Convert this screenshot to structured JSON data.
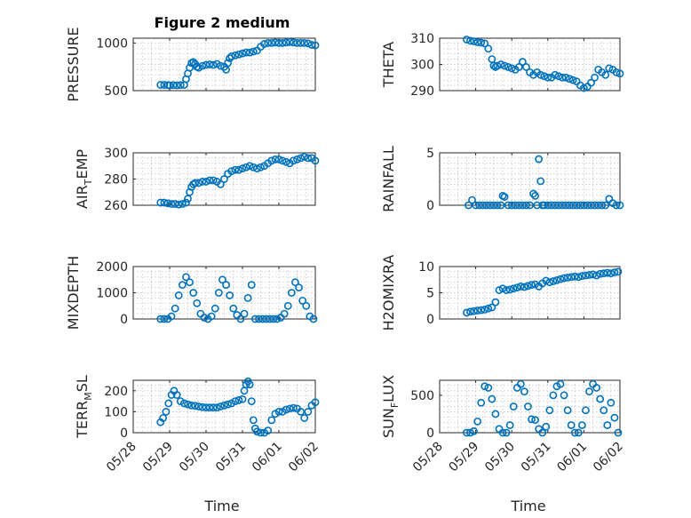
{
  "figure_title": "Figure 2 medium",
  "x_label": "Time",
  "x_ticks": [
    "05/28",
    "05/29",
    "05/30",
    "05/31",
    "06/01",
    "06/02"
  ],
  "colors": {
    "marker": "#0072bd",
    "axis": "#262626",
    "grid": "#bdbdbd"
  },
  "chart_data": [
    {
      "type": "scatter",
      "id": "pressure",
      "ylabel": "PRESSURE",
      "ylabel_sub": "",
      "ylim": [
        500,
        1050
      ],
      "yticks": [
        500,
        1000
      ],
      "yticklabels": [
        "500",
        "1000"
      ],
      "xrange": [
        0,
        5
      ],
      "x_tick_values": [
        0,
        1,
        2,
        3,
        4,
        5
      ],
      "x": [
        0.75,
        0.85,
        0.95,
        1.0,
        1.1,
        1.2,
        1.3,
        1.4,
        1.45,
        1.5,
        1.55,
        1.6,
        1.65,
        1.7,
        1.75,
        1.8,
        1.9,
        2.0,
        2.1,
        2.2,
        2.3,
        2.4,
        2.5,
        2.55,
        2.6,
        2.65,
        2.7,
        2.8,
        2.9,
        3.0,
        3.1,
        3.2,
        3.3,
        3.4,
        3.5,
        3.6,
        3.7,
        3.8,
        3.9,
        4.0,
        4.1,
        4.2,
        4.3,
        4.4,
        4.5,
        4.6,
        4.7,
        4.8,
        4.9,
        5.0
      ],
      "y": [
        560,
        560,
        558,
        555,
        558,
        556,
        558,
        560,
        620,
        680,
        740,
        790,
        800,
        780,
        750,
        740,
        760,
        770,
        775,
        770,
        780,
        760,
        750,
        720,
        790,
        840,
        860,
        870,
        880,
        890,
        900,
        900,
        910,
        920,
        960,
        990,
        1000,
        1000,
        1005,
        1000,
        1000,
        1005,
        1010,
        1005,
        1000,
        1000,
        1000,
        995,
        980,
        975
      ]
    },
    {
      "type": "scatter",
      "id": "theta",
      "ylabel": "THETA",
      "ylabel_sub": "",
      "ylim": [
        290,
        310
      ],
      "yticks": [
        290,
        300,
        310
      ],
      "yticklabels": [
        "290",
        "300",
        "310"
      ],
      "xrange": [
        0,
        5
      ],
      "x_tick_values": [
        0,
        1,
        2,
        3,
        4,
        5
      ],
      "x": [
        0.75,
        0.85,
        0.95,
        1.05,
        1.15,
        1.25,
        1.35,
        1.45,
        1.5,
        1.55,
        1.6,
        1.7,
        1.8,
        1.9,
        2.0,
        2.1,
        2.2,
        2.3,
        2.4,
        2.5,
        2.6,
        2.7,
        2.8,
        2.9,
        3.0,
        3.1,
        3.2,
        3.3,
        3.4,
        3.5,
        3.6,
        3.7,
        3.8,
        3.9,
        4.0,
        4.1,
        4.2,
        4.3,
        4.4,
        4.5,
        4.6,
        4.7,
        4.8,
        4.9,
        5.0
      ],
      "y": [
        309.5,
        309,
        308.8,
        308.5,
        308.3,
        308,
        306,
        302,
        299.5,
        299,
        299.5,
        300,
        299.5,
        299,
        298.5,
        298,
        299,
        301,
        299,
        297,
        296,
        297,
        296,
        295.5,
        295,
        295,
        296,
        295.5,
        295,
        295,
        294.5,
        294,
        293.5,
        292,
        291,
        291.5,
        293,
        295,
        298,
        297,
        296,
        298.5,
        298,
        297,
        296.5
      ]
    },
    {
      "type": "scatter",
      "id": "air-temp",
      "ylabel": "AIR",
      "ylabel_sub": "T",
      "ylabel_suffix": "EMP",
      "ylim": [
        260,
        300
      ],
      "yticks": [
        260,
        280,
        300
      ],
      "yticklabels": [
        "260",
        "280",
        "300"
      ],
      "xrange": [
        0,
        5
      ],
      "x_tick_values": [
        0,
        1,
        2,
        3,
        4,
        5
      ],
      "x": [
        0.75,
        0.85,
        0.95,
        1.05,
        1.15,
        1.25,
        1.35,
        1.45,
        1.5,
        1.55,
        1.6,
        1.65,
        1.7,
        1.8,
        1.9,
        2.0,
        2.1,
        2.2,
        2.3,
        2.4,
        2.5,
        2.6,
        2.7,
        2.8,
        2.9,
        3.0,
        3.1,
        3.2,
        3.3,
        3.4,
        3.5,
        3.6,
        3.7,
        3.8,
        3.9,
        4.0,
        4.1,
        4.2,
        4.3,
        4.4,
        4.5,
        4.6,
        4.7,
        4.8,
        4.9,
        5.0
      ],
      "y": [
        262,
        262,
        261.5,
        261,
        261,
        260.5,
        261,
        262,
        265,
        270,
        274,
        276,
        277,
        277,
        278,
        278,
        279,
        279,
        278,
        276,
        280,
        284,
        286,
        287,
        287,
        288,
        289,
        290,
        289,
        288,
        289,
        290,
        292,
        294,
        295,
        295,
        294,
        293,
        292,
        294,
        295,
        296,
        297,
        296,
        296,
        294
      ]
    },
    {
      "type": "scatter",
      "id": "rainfall",
      "ylabel": "RAINFALL",
      "ylabel_sub": "",
      "ylim": [
        0,
        5
      ],
      "yticks": [
        0,
        5
      ],
      "yticklabels": [
        "0",
        "5"
      ],
      "xrange": [
        0,
        5
      ],
      "x_tick_values": [
        0,
        1,
        2,
        3,
        4,
        5
      ],
      "x": [
        0.8,
        0.9,
        1.0,
        1.1,
        1.2,
        1.3,
        1.4,
        1.5,
        1.6,
        1.7,
        1.75,
        1.8,
        1.9,
        2.0,
        2.1,
        2.2,
        2.3,
        2.4,
        2.5,
        2.6,
        2.65,
        2.7,
        2.75,
        2.8,
        2.85,
        2.9,
        3.0,
        3.1,
        3.2,
        3.3,
        3.4,
        3.5,
        3.6,
        3.7,
        3.8,
        3.9,
        4.0,
        4.1,
        4.2,
        4.3,
        4.4,
        4.5,
        4.6,
        4.7,
        4.8,
        4.9,
        5.0
      ],
      "y": [
        0,
        0.5,
        0,
        0,
        0,
        0,
        0,
        0,
        0,
        0,
        0.9,
        0.8,
        0,
        0,
        0,
        0,
        0,
        0,
        0,
        1.1,
        0.9,
        0,
        4.4,
        2.3,
        0,
        0,
        0,
        0,
        0,
        0,
        0,
        0,
        0,
        0,
        0,
        0,
        0,
        0,
        0,
        0,
        0,
        0,
        0,
        0.6,
        0.2,
        0,
        0
      ]
    },
    {
      "type": "scatter",
      "id": "mixdepth",
      "ylabel": "MIXDEPTH",
      "ylabel_sub": "",
      "ylim": [
        0,
        2000
      ],
      "yticks": [
        0,
        1000,
        2000
      ],
      "yticklabels": [
        "0",
        "1000",
        "2000"
      ],
      "xrange": [
        0,
        5
      ],
      "x_tick_values": [
        0,
        1,
        2,
        3,
        4,
        5
      ],
      "x": [
        0.75,
        0.85,
        0.95,
        1.05,
        1.15,
        1.25,
        1.35,
        1.45,
        1.55,
        1.65,
        1.75,
        1.85,
        1.95,
        2.05,
        2.15,
        2.25,
        2.35,
        2.45,
        2.55,
        2.65,
        2.75,
        2.85,
        2.95,
        3.05,
        3.15,
        3.25,
        3.35,
        3.45,
        3.55,
        3.65,
        3.75,
        3.85,
        3.95,
        4.05,
        4.15,
        4.25,
        4.35,
        4.45,
        4.55,
        4.65,
        4.75,
        4.85,
        4.95
      ],
      "y": [
        0,
        0,
        0,
        100,
        400,
        900,
        1300,
        1600,
        1400,
        1000,
        600,
        200,
        50,
        0,
        100,
        400,
        1000,
        1500,
        1300,
        900,
        400,
        150,
        0,
        200,
        800,
        1300,
        0,
        0,
        0,
        0,
        0,
        0,
        0,
        50,
        200,
        500,
        1000,
        1400,
        1200,
        700,
        500,
        100,
        0
      ]
    },
    {
      "type": "scatter",
      "id": "h2omixra",
      "ylabel": "H2OMIXRA",
      "ylabel_sub": "",
      "ylim": [
        0,
        10
      ],
      "yticks": [
        0,
        5,
        10
      ],
      "yticklabels": [
        "0",
        "5",
        "10"
      ],
      "xrange": [
        0,
        5
      ],
      "x_tick_values": [
        0,
        1,
        2,
        3,
        4,
        5
      ],
      "x": [
        0.75,
        0.85,
        0.95,
        1.05,
        1.15,
        1.25,
        1.35,
        1.45,
        1.55,
        1.65,
        1.75,
        1.85,
        1.95,
        2.05,
        2.15,
        2.25,
        2.35,
        2.45,
        2.55,
        2.65,
        2.75,
        2.85,
        2.95,
        3.05,
        3.15,
        3.25,
        3.35,
        3.45,
        3.55,
        3.65,
        3.75,
        3.85,
        3.95,
        4.05,
        4.15,
        4.25,
        4.35,
        4.45,
        4.55,
        4.65,
        4.75,
        4.85,
        4.95
      ],
      "y": [
        1.2,
        1.4,
        1.5,
        1.6,
        1.7,
        1.8,
        2.0,
        2.2,
        3.2,
        5.5,
        5.8,
        5.5,
        5.6,
        5.8,
        6.0,
        6.2,
        6.1,
        6.3,
        6.5,
        6.6,
        6.2,
        6.8,
        7.3,
        7.0,
        7.2,
        7.4,
        7.6,
        7.8,
        7.9,
        8.0,
        8.1,
        8.0,
        8.2,
        8.3,
        8.4,
        8.5,
        8.3,
        8.6,
        8.7,
        8.8,
        8.7,
        8.9,
        9.0
      ]
    },
    {
      "type": "scatter",
      "id": "terr-msl",
      "ylabel": "TERR",
      "ylabel_sub": "M",
      "ylabel_suffix": "SL",
      "ylim": [
        0,
        250
      ],
      "yticks": [
        0,
        100,
        200
      ],
      "yticklabels": [
        "0",
        "100",
        "200"
      ],
      "xrange": [
        0,
        5
      ],
      "x_tick_values": [
        0,
        1,
        2,
        3,
        4,
        5
      ],
      "x": [
        0.75,
        0.82,
        0.9,
        0.97,
        1.05,
        1.12,
        1.2,
        1.3,
        1.4,
        1.5,
        1.6,
        1.7,
        1.8,
        1.9,
        2.0,
        2.1,
        2.2,
        2.3,
        2.4,
        2.5,
        2.6,
        2.7,
        2.8,
        2.9,
        3.0,
        3.05,
        3.1,
        3.15,
        3.2,
        3.25,
        3.3,
        3.35,
        3.4,
        3.5,
        3.6,
        3.7,
        3.8,
        3.9,
        4.0,
        4.1,
        4.2,
        4.3,
        4.4,
        4.5,
        4.6,
        4.7,
        4.8,
        4.9,
        5.0
      ],
      "y": [
        50,
        70,
        100,
        140,
        180,
        200,
        180,
        150,
        140,
        135,
        130,
        128,
        125,
        122,
        120,
        120,
        120,
        120,
        125,
        130,
        135,
        140,
        150,
        155,
        160,
        200,
        230,
        245,
        230,
        150,
        60,
        20,
        5,
        0,
        0,
        10,
        60,
        90,
        100,
        100,
        110,
        115,
        118,
        115,
        100,
        70,
        100,
        130,
        145
      ]
    },
    {
      "type": "scatter",
      "id": "sun-flux",
      "ylabel": "SUN",
      "ylabel_sub": "F",
      "ylabel_suffix": "LUX",
      "ylim": [
        0,
        700
      ],
      "yticks": [
        0,
        500
      ],
      "yticklabels": [
        "0",
        "500"
      ],
      "xrange": [
        0,
        5
      ],
      "x_tick_values": [
        0,
        1,
        2,
        3,
        4,
        5
      ],
      "x": [
        0.75,
        0.85,
        0.95,
        1.05,
        1.15,
        1.25,
        1.35,
        1.45,
        1.55,
        1.65,
        1.75,
        1.85,
        1.95,
        2.05,
        2.15,
        2.25,
        2.35,
        2.45,
        2.55,
        2.65,
        2.75,
        2.85,
        2.95,
        3.05,
        3.15,
        3.25,
        3.35,
        3.45,
        3.55,
        3.65,
        3.75,
        3.85,
        3.95,
        4.05,
        4.15,
        4.25,
        4.35,
        4.45,
        4.55,
        4.65,
        4.75,
        4.85,
        4.95
      ],
      "y": [
        0,
        0,
        20,
        150,
        400,
        620,
        600,
        450,
        250,
        50,
        0,
        0,
        100,
        350,
        600,
        650,
        550,
        350,
        180,
        170,
        50,
        0,
        80,
        300,
        500,
        620,
        650,
        500,
        300,
        100,
        0,
        0,
        100,
        300,
        550,
        650,
        600,
        450,
        300,
        100,
        400,
        200,
        0
      ]
    }
  ]
}
